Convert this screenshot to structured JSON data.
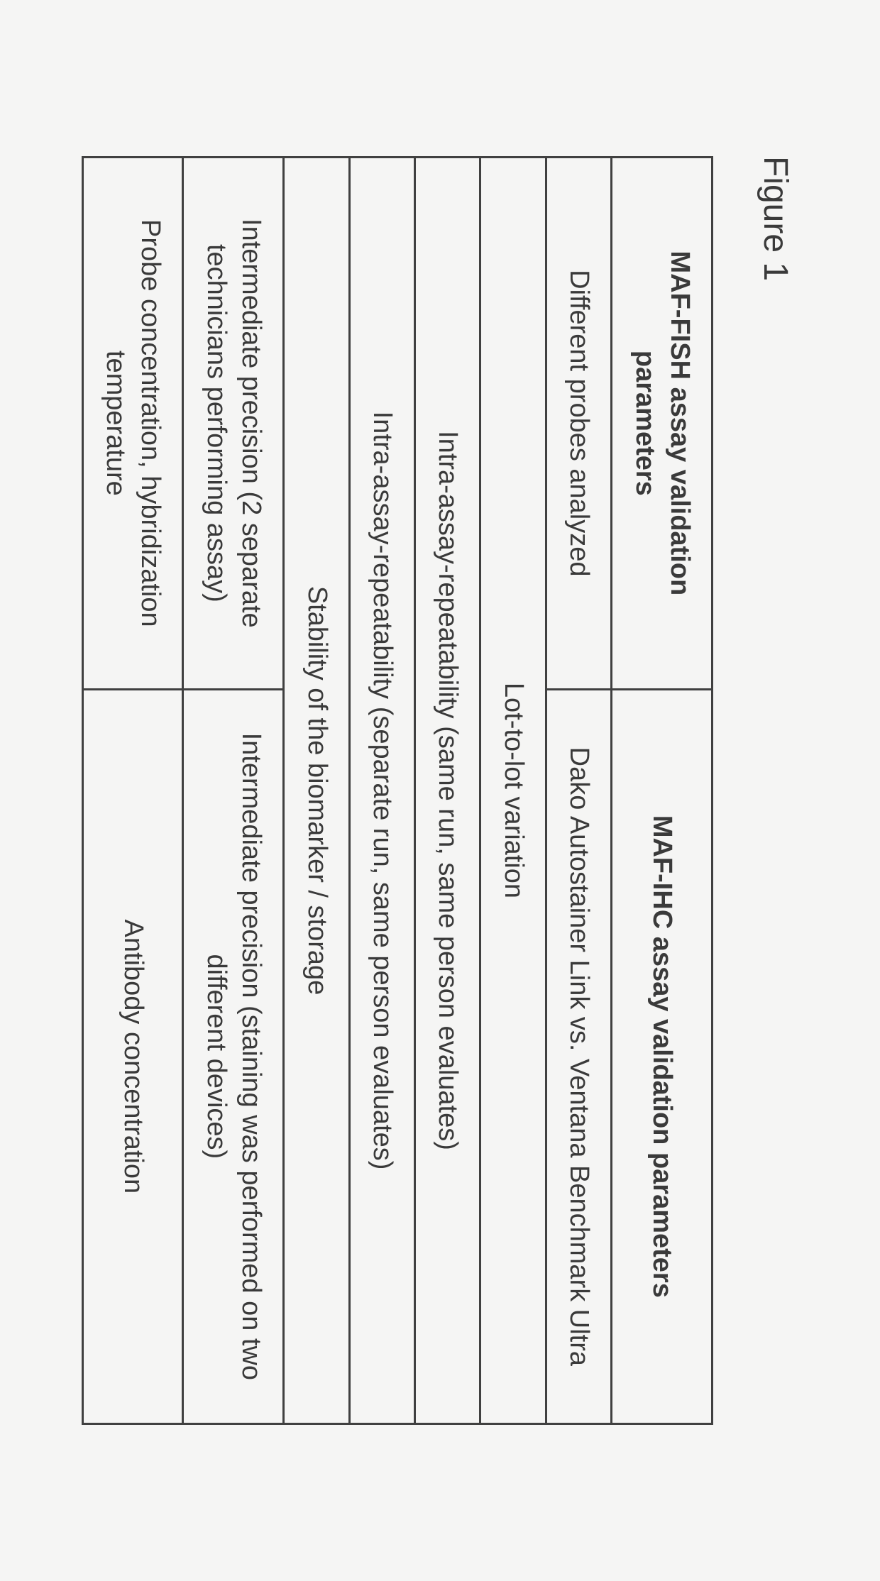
{
  "figure_label": "Figure 1",
  "table": {
    "headers": {
      "left": "MAF-FISH assay validation parameters",
      "right": "MAF-IHC assay validation parameters"
    },
    "rows": [
      {
        "type": "split",
        "left": "Different probes analyzed",
        "right": "Dako Autostainer Link vs. Ventana Benchmark Ultra"
      },
      {
        "type": "span",
        "text": "Lot-to-lot variation"
      },
      {
        "type": "span",
        "text": "Intra-assay-repeatability (same run, same person evaluates)"
      },
      {
        "type": "span",
        "text": "Intra-assay-repeatability (separate run, same person evaluates)"
      },
      {
        "type": "span",
        "text": "Stability of the biomarker / storage"
      },
      {
        "type": "split",
        "left": "Intermediate precision (2 separate technicians performing assay)",
        "right": "Intermediate precision (staining was performed on two different devices)"
      },
      {
        "type": "split",
        "left": "Probe concentration, hybridization temperature",
        "right": "Antibody concentration"
      }
    ]
  },
  "colors": {
    "background": "#f5f5f4",
    "border": "#404040",
    "text": "#3a3a3a"
  },
  "typography": {
    "figure_label_fontsize": 48,
    "cell_fontsize": 38,
    "font_family": "Arial"
  }
}
